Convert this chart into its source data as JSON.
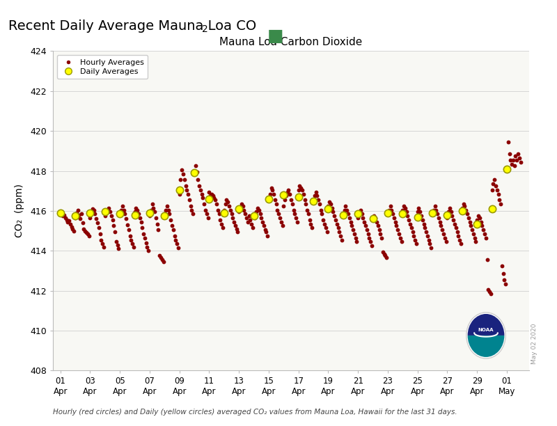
{
  "title_main_part1": "Recent Daily Average Mauna Loa CO",
  "title_main_sub": "2",
  "chart_title": "Mauna Loa Carbon Dioxide",
  "ylabel": "CO₂  (ppm)",
  "footer": "Hourly (red circles) and Daily (yellow circles) averaged CO₂ values from Mauna Loa, Hawaii for the last 31 days.",
  "watermark": "May 02 2020",
  "ylim": [
    408,
    424
  ],
  "yticks": [
    408,
    410,
    412,
    414,
    416,
    418,
    420,
    422,
    424
  ],
  "x_tick_labels": [
    "01\nApr",
    "03\nApr",
    "05\nApr",
    "07\nApr",
    "09\nApr",
    "11\nApr",
    "13\nApr",
    "15\nApr",
    "17\nApr",
    "19\nApr",
    "21\nApr",
    "23\nApr",
    "25\nApr",
    "27\nApr",
    "29\nApr",
    "01\nMay"
  ],
  "x_tick_positions": [
    0,
    2,
    4,
    6,
    8,
    10,
    12,
    14,
    16,
    18,
    20,
    22,
    24,
    26,
    28,
    30
  ],
  "green_square_color": "#3a8a4a",
  "bg_color": "#f8f8f4",
  "hourly_color": "#8b0000",
  "daily_facecolor": "#ffff00",
  "daily_edgecolor": "#999900",
  "hourly_data": [
    [
      0.0,
      415.9
    ],
    [
      0.08,
      415.85
    ],
    [
      0.17,
      415.75
    ],
    [
      0.25,
      415.8
    ],
    [
      0.33,
      415.65
    ],
    [
      0.42,
      415.55
    ],
    [
      0.5,
      415.45
    ],
    [
      0.58,
      415.5
    ],
    [
      0.67,
      415.35
    ],
    [
      0.75,
      415.2
    ],
    [
      0.83,
      415.1
    ],
    [
      0.92,
      415.0
    ],
    [
      1.0,
      415.65
    ],
    [
      1.08,
      415.9
    ],
    [
      1.17,
      416.05
    ],
    [
      1.25,
      415.8
    ],
    [
      1.33,
      415.6
    ],
    [
      1.42,
      415.85
    ],
    [
      1.5,
      415.4
    ],
    [
      1.58,
      415.1
    ],
    [
      1.67,
      415.0
    ],
    [
      1.75,
      414.9
    ],
    [
      1.83,
      414.85
    ],
    [
      1.92,
      414.75
    ],
    [
      2.0,
      415.65
    ],
    [
      2.08,
      415.85
    ],
    [
      2.17,
      416.1
    ],
    [
      2.25,
      416.05
    ],
    [
      2.33,
      415.85
    ],
    [
      2.42,
      415.6
    ],
    [
      2.5,
      415.4
    ],
    [
      2.58,
      415.15
    ],
    [
      2.67,
      414.85
    ],
    [
      2.75,
      414.55
    ],
    [
      2.83,
      414.35
    ],
    [
      2.92,
      414.2
    ],
    [
      3.0,
      415.75
    ],
    [
      3.08,
      416.05
    ],
    [
      3.17,
      415.95
    ],
    [
      3.25,
      416.15
    ],
    [
      3.33,
      415.95
    ],
    [
      3.42,
      415.75
    ],
    [
      3.5,
      415.55
    ],
    [
      3.58,
      415.25
    ],
    [
      3.67,
      414.95
    ],
    [
      3.75,
      414.45
    ],
    [
      3.83,
      414.3
    ],
    [
      3.92,
      414.1
    ],
    [
      4.0,
      415.85
    ],
    [
      4.08,
      416.05
    ],
    [
      4.17,
      416.25
    ],
    [
      4.25,
      416.05
    ],
    [
      4.33,
      415.85
    ],
    [
      4.42,
      415.6
    ],
    [
      4.5,
      415.3
    ],
    [
      4.58,
      415.05
    ],
    [
      4.67,
      414.75
    ],
    [
      4.75,
      414.55
    ],
    [
      4.83,
      414.35
    ],
    [
      4.92,
      414.2
    ],
    [
      5.0,
      415.95
    ],
    [
      5.08,
      416.15
    ],
    [
      5.17,
      416.05
    ],
    [
      5.25,
      415.85
    ],
    [
      5.33,
      415.65
    ],
    [
      5.42,
      415.45
    ],
    [
      5.5,
      415.15
    ],
    [
      5.58,
      414.85
    ],
    [
      5.67,
      414.65
    ],
    [
      5.75,
      414.4
    ],
    [
      5.83,
      414.2
    ],
    [
      5.92,
      414.0
    ],
    [
      6.0,
      415.75
    ],
    [
      6.08,
      416.05
    ],
    [
      6.17,
      416.35
    ],
    [
      6.25,
      416.15
    ],
    [
      6.33,
      415.95
    ],
    [
      6.42,
      415.65
    ],
    [
      6.5,
      415.35
    ],
    [
      6.58,
      415.05
    ],
    [
      6.67,
      413.75
    ],
    [
      6.75,
      413.65
    ],
    [
      6.83,
      413.55
    ],
    [
      6.92,
      413.45
    ],
    [
      7.0,
      415.85
    ],
    [
      7.08,
      416.05
    ],
    [
      7.17,
      416.25
    ],
    [
      7.25,
      416.05
    ],
    [
      7.33,
      415.85
    ],
    [
      7.42,
      415.55
    ],
    [
      7.5,
      415.25
    ],
    [
      7.58,
      415.05
    ],
    [
      7.67,
      414.75
    ],
    [
      7.75,
      414.55
    ],
    [
      7.83,
      414.35
    ],
    [
      7.92,
      414.15
    ],
    [
      8.0,
      416.85
    ],
    [
      8.08,
      417.55
    ],
    [
      8.17,
      418.05
    ],
    [
      8.25,
      417.85
    ],
    [
      8.33,
      417.55
    ],
    [
      8.42,
      417.25
    ],
    [
      8.5,
      417.05
    ],
    [
      8.58,
      416.85
    ],
    [
      8.67,
      416.55
    ],
    [
      8.75,
      416.25
    ],
    [
      8.83,
      416.05
    ],
    [
      8.92,
      415.85
    ],
    [
      9.0,
      417.85
    ],
    [
      9.08,
      418.25
    ],
    [
      9.17,
      417.95
    ],
    [
      9.25,
      417.55
    ],
    [
      9.33,
      417.25
    ],
    [
      9.42,
      417.05
    ],
    [
      9.5,
      416.85
    ],
    [
      9.58,
      416.65
    ],
    [
      9.67,
      416.35
    ],
    [
      9.75,
      416.05
    ],
    [
      9.83,
      415.85
    ],
    [
      9.92,
      415.65
    ],
    [
      10.0,
      416.95
    ],
    [
      10.08,
      416.75
    ],
    [
      10.17,
      416.85
    ],
    [
      10.25,
      416.75
    ],
    [
      10.33,
      416.65
    ],
    [
      10.42,
      416.55
    ],
    [
      10.5,
      416.35
    ],
    [
      10.58,
      416.05
    ],
    [
      10.67,
      415.85
    ],
    [
      10.75,
      415.55
    ],
    [
      10.83,
      415.35
    ],
    [
      10.92,
      415.15
    ],
    [
      11.0,
      416.05
    ],
    [
      11.08,
      416.35
    ],
    [
      11.17,
      416.55
    ],
    [
      11.25,
      416.45
    ],
    [
      11.33,
      416.25
    ],
    [
      11.42,
      416.05
    ],
    [
      11.5,
      415.85
    ],
    [
      11.58,
      415.65
    ],
    [
      11.67,
      415.45
    ],
    [
      11.75,
      415.25
    ],
    [
      11.83,
      415.1
    ],
    [
      11.92,
      414.95
    ],
    [
      12.0,
      415.95
    ],
    [
      12.08,
      416.15
    ],
    [
      12.17,
      416.35
    ],
    [
      12.25,
      416.25
    ],
    [
      12.33,
      416.05
    ],
    [
      12.42,
      415.85
    ],
    [
      12.5,
      415.65
    ],
    [
      12.58,
      415.45
    ],
    [
      12.67,
      415.75
    ],
    [
      12.75,
      415.55
    ],
    [
      12.83,
      415.35
    ],
    [
      12.92,
      415.15
    ],
    [
      13.0,
      415.85
    ],
    [
      13.08,
      415.65
    ],
    [
      13.17,
      415.95
    ],
    [
      13.25,
      416.15
    ],
    [
      13.33,
      416.05
    ],
    [
      13.42,
      415.85
    ],
    [
      13.5,
      415.65
    ],
    [
      13.58,
      415.45
    ],
    [
      13.67,
      415.25
    ],
    [
      13.75,
      415.05
    ],
    [
      13.83,
      414.95
    ],
    [
      13.92,
      414.75
    ],
    [
      14.0,
      416.55
    ],
    [
      14.08,
      416.85
    ],
    [
      14.17,
      417.15
    ],
    [
      14.25,
      417.05
    ],
    [
      14.33,
      416.85
    ],
    [
      14.42,
      416.55
    ],
    [
      14.5,
      416.35
    ],
    [
      14.58,
      416.05
    ],
    [
      14.67,
      415.85
    ],
    [
      14.75,
      415.65
    ],
    [
      14.83,
      415.45
    ],
    [
      14.92,
      415.25
    ],
    [
      15.0,
      416.25
    ],
    [
      15.08,
      416.55
    ],
    [
      15.17,
      416.75
    ],
    [
      15.25,
      416.95
    ],
    [
      15.33,
      417.05
    ],
    [
      15.42,
      416.85
    ],
    [
      15.5,
      416.55
    ],
    [
      15.58,
      416.35
    ],
    [
      15.67,
      416.05
    ],
    [
      15.75,
      415.85
    ],
    [
      15.83,
      415.65
    ],
    [
      15.92,
      415.45
    ],
    [
      16.0,
      417.05
    ],
    [
      16.08,
      417.25
    ],
    [
      16.17,
      417.15
    ],
    [
      16.25,
      417.05
    ],
    [
      16.33,
      416.85
    ],
    [
      16.42,
      416.55
    ],
    [
      16.5,
      416.35
    ],
    [
      16.58,
      416.05
    ],
    [
      16.67,
      415.85
    ],
    [
      16.75,
      415.55
    ],
    [
      16.83,
      415.35
    ],
    [
      16.92,
      415.15
    ],
    [
      17.0,
      416.55
    ],
    [
      17.08,
      416.75
    ],
    [
      17.17,
      416.95
    ],
    [
      17.25,
      416.75
    ],
    [
      17.33,
      416.55
    ],
    [
      17.42,
      416.35
    ],
    [
      17.5,
      416.05
    ],
    [
      17.58,
      415.85
    ],
    [
      17.67,
      415.55
    ],
    [
      17.75,
      415.35
    ],
    [
      17.83,
      415.15
    ],
    [
      17.92,
      414.95
    ],
    [
      18.0,
      416.25
    ],
    [
      18.08,
      416.45
    ],
    [
      18.17,
      416.35
    ],
    [
      18.25,
      416.15
    ],
    [
      18.33,
      415.95
    ],
    [
      18.42,
      415.75
    ],
    [
      18.5,
      415.55
    ],
    [
      18.58,
      415.35
    ],
    [
      18.67,
      415.15
    ],
    [
      18.75,
      414.95
    ],
    [
      18.83,
      414.75
    ],
    [
      18.92,
      414.55
    ],
    [
      19.0,
      415.85
    ],
    [
      19.08,
      416.05
    ],
    [
      19.17,
      416.25
    ],
    [
      19.25,
      416.05
    ],
    [
      19.33,
      415.85
    ],
    [
      19.42,
      415.65
    ],
    [
      19.5,
      415.45
    ],
    [
      19.58,
      415.25
    ],
    [
      19.67,
      415.05
    ],
    [
      19.75,
      414.85
    ],
    [
      19.83,
      414.65
    ],
    [
      19.92,
      414.45
    ],
    [
      20.0,
      415.65
    ],
    [
      20.08,
      415.85
    ],
    [
      20.17,
      416.05
    ],
    [
      20.25,
      415.85
    ],
    [
      20.33,
      415.65
    ],
    [
      20.42,
      415.45
    ],
    [
      20.5,
      415.25
    ],
    [
      20.58,
      415.05
    ],
    [
      20.67,
      414.85
    ],
    [
      20.75,
      414.65
    ],
    [
      20.83,
      414.45
    ],
    [
      20.92,
      414.25
    ],
    [
      21.0,
      415.55
    ],
    [
      21.08,
      415.75
    ],
    [
      21.17,
      415.65
    ],
    [
      21.25,
      415.45
    ],
    [
      21.33,
      415.25
    ],
    [
      21.42,
      415.05
    ],
    [
      21.5,
      414.85
    ],
    [
      21.58,
      414.65
    ],
    [
      21.67,
      413.95
    ],
    [
      21.75,
      413.85
    ],
    [
      21.83,
      413.75
    ],
    [
      21.92,
      413.65
    ],
    [
      22.0,
      415.85
    ],
    [
      22.08,
      416.05
    ],
    [
      22.17,
      416.25
    ],
    [
      22.25,
      416.05
    ],
    [
      22.33,
      415.85
    ],
    [
      22.42,
      415.65
    ],
    [
      22.5,
      415.45
    ],
    [
      22.58,
      415.25
    ],
    [
      22.67,
      415.05
    ],
    [
      22.75,
      414.85
    ],
    [
      22.83,
      414.65
    ],
    [
      22.92,
      414.45
    ],
    [
      23.0,
      416.05
    ],
    [
      23.08,
      416.25
    ],
    [
      23.17,
      416.15
    ],
    [
      23.25,
      415.95
    ],
    [
      23.33,
      415.75
    ],
    [
      23.42,
      415.55
    ],
    [
      23.5,
      415.35
    ],
    [
      23.58,
      415.15
    ],
    [
      23.67,
      414.95
    ],
    [
      23.75,
      414.75
    ],
    [
      23.83,
      414.55
    ],
    [
      23.92,
      414.35
    ],
    [
      24.0,
      415.95
    ],
    [
      24.08,
      416.15
    ],
    [
      24.17,
      415.95
    ],
    [
      24.25,
      415.75
    ],
    [
      24.33,
      415.55
    ],
    [
      24.42,
      415.35
    ],
    [
      24.5,
      415.15
    ],
    [
      24.58,
      414.95
    ],
    [
      24.67,
      414.75
    ],
    [
      24.75,
      414.55
    ],
    [
      24.83,
      414.35
    ],
    [
      24.92,
      414.15
    ],
    [
      25.0,
      415.85
    ],
    [
      25.08,
      416.05
    ],
    [
      25.17,
      416.25
    ],
    [
      25.25,
      416.05
    ],
    [
      25.33,
      415.85
    ],
    [
      25.42,
      415.65
    ],
    [
      25.5,
      415.45
    ],
    [
      25.58,
      415.25
    ],
    [
      25.67,
      415.05
    ],
    [
      25.75,
      414.85
    ],
    [
      25.83,
      414.65
    ],
    [
      25.92,
      414.45
    ],
    [
      26.0,
      415.65
    ],
    [
      26.08,
      415.95
    ],
    [
      26.17,
      416.15
    ],
    [
      26.25,
      415.95
    ],
    [
      26.33,
      415.75
    ],
    [
      26.42,
      415.55
    ],
    [
      26.5,
      415.35
    ],
    [
      26.58,
      415.15
    ],
    [
      26.67,
      414.95
    ],
    [
      26.75,
      414.75
    ],
    [
      26.83,
      414.55
    ],
    [
      26.92,
      414.35
    ],
    [
      27.0,
      416.15
    ],
    [
      27.08,
      416.35
    ],
    [
      27.17,
      416.25
    ],
    [
      27.25,
      416.05
    ],
    [
      27.33,
      415.85
    ],
    [
      27.42,
      415.65
    ],
    [
      27.5,
      415.45
    ],
    [
      27.58,
      415.25
    ],
    [
      27.67,
      415.05
    ],
    [
      27.75,
      414.85
    ],
    [
      27.83,
      414.65
    ],
    [
      27.92,
      414.45
    ],
    [
      28.0,
      415.55
    ],
    [
      28.08,
      415.75
    ],
    [
      28.17,
      415.65
    ],
    [
      28.25,
      415.45
    ],
    [
      28.33,
      415.25
    ],
    [
      28.42,
      415.05
    ],
    [
      28.5,
      414.85
    ],
    [
      28.58,
      414.65
    ],
    [
      28.67,
      413.55
    ],
    [
      28.75,
      412.05
    ],
    [
      28.83,
      411.95
    ],
    [
      28.92,
      411.85
    ],
    [
      29.0,
      417.05
    ],
    [
      29.08,
      417.35
    ],
    [
      29.17,
      417.55
    ],
    [
      29.25,
      417.25
    ],
    [
      29.33,
      417.05
    ],
    [
      29.42,
      416.85
    ],
    [
      29.5,
      416.55
    ],
    [
      29.58,
      416.35
    ],
    [
      29.67,
      413.25
    ],
    [
      29.75,
      412.85
    ],
    [
      29.83,
      412.55
    ],
    [
      29.92,
      412.35
    ],
    [
      30.0,
      418.05
    ],
    [
      30.08,
      419.45
    ],
    [
      30.17,
      418.85
    ],
    [
      30.25,
      418.55
    ],
    [
      30.33,
      418.35
    ],
    [
      30.42,
      418.55
    ],
    [
      30.5,
      418.25
    ],
    [
      30.58,
      418.75
    ],
    [
      30.67,
      418.55
    ],
    [
      30.75,
      418.85
    ],
    [
      30.83,
      418.65
    ],
    [
      30.92,
      418.45
    ]
  ],
  "daily_data": [
    [
      0.0,
      415.9
    ],
    [
      1.0,
      415.75
    ],
    [
      2.0,
      415.9
    ],
    [
      3.0,
      415.95
    ],
    [
      4.0,
      415.85
    ],
    [
      5.0,
      415.8
    ],
    [
      6.0,
      415.9
    ],
    [
      7.0,
      415.75
    ],
    [
      8.0,
      417.05
    ],
    [
      9.0,
      417.9
    ],
    [
      10.0,
      416.6
    ],
    [
      11.0,
      415.9
    ],
    [
      12.0,
      416.1
    ],
    [
      13.0,
      415.75
    ],
    [
      14.0,
      416.6
    ],
    [
      15.0,
      416.8
    ],
    [
      16.0,
      416.7
    ],
    [
      17.0,
      416.5
    ],
    [
      18.0,
      416.1
    ],
    [
      19.0,
      415.8
    ],
    [
      20.0,
      415.85
    ],
    [
      21.0,
      415.6
    ],
    [
      22.0,
      415.9
    ],
    [
      23.0,
      415.85
    ],
    [
      24.0,
      415.7
    ],
    [
      25.0,
      415.9
    ],
    [
      26.0,
      415.8
    ],
    [
      27.0,
      416.0
    ],
    [
      28.0,
      415.35
    ],
    [
      29.0,
      416.1
    ],
    [
      30.0,
      418.1
    ]
  ],
  "fig_width": 8.0,
  "fig_height": 6.12,
  "fig_dpi": 100
}
